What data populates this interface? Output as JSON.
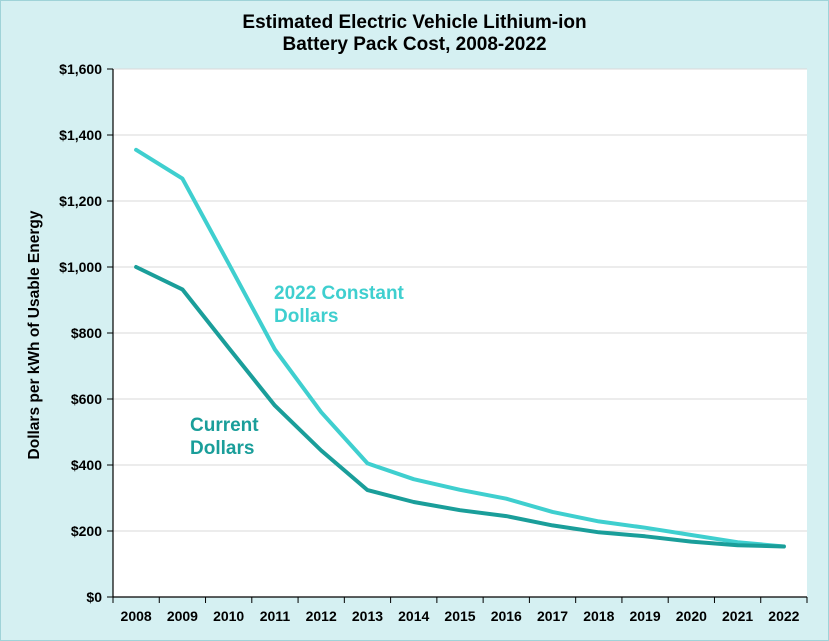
{
  "colors": {
    "background": "#d5f0f2",
    "plot_background": "#ffffff",
    "gridline": "#d9d9d9",
    "constant_dollars": "#3fcfcf",
    "current_dollars": "#1a9e9a"
  },
  "chart_data": {
    "type": "line",
    "title": [
      "Estimated Electric Vehicle Lithium-ion",
      "Battery Pack Cost, 2008-2022"
    ],
    "xlabel": "",
    "ylabel": "Dollars per kWh of Usable Energy",
    "ylim": [
      0,
      1600
    ],
    "grid": true,
    "y_ticks": [
      0,
      200,
      400,
      600,
      800,
      1000,
      1200,
      1400,
      1600
    ],
    "y_tick_labels": [
      "$0",
      "$200",
      "$400",
      "$600",
      "$800",
      "$1,000",
      "$1,200",
      "$1,400",
      "$1,600"
    ],
    "categories": [
      "2008",
      "2009",
      "2010",
      "2011",
      "2012",
      "2013",
      "2014",
      "2015",
      "2016",
      "2017",
      "2018",
      "2019",
      "2020",
      "2021",
      "2022"
    ],
    "series": [
      {
        "name": "2022 Constant Dollars",
        "label_lines": [
          "2022 Constant",
          "Dollars"
        ],
        "color": "#3fcfcf",
        "values": [
          1355,
          1268,
          1010,
          750,
          560,
          405,
          357,
          325,
          298,
          258,
          229,
          210,
          188,
          166,
          153
        ]
      },
      {
        "name": "Current Dollars",
        "label_lines": [
          "Current",
          "Dollars"
        ],
        "color": "#1a9e9a",
        "values": [
          1000,
          932,
          755,
          580,
          444,
          324,
          288,
          263,
          245,
          217,
          196,
          184,
          168,
          157,
          153
        ]
      }
    ]
  }
}
